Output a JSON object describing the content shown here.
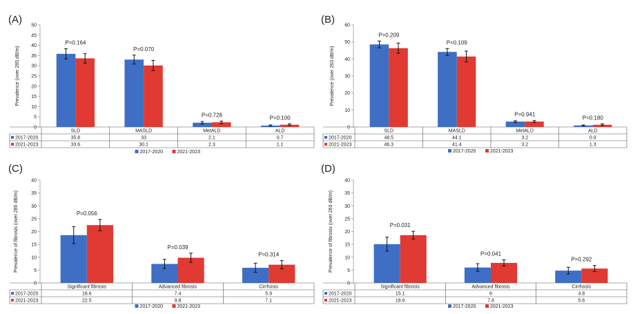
{
  "colors": {
    "s2017": "#3E6FC4",
    "s2021": "#E03A33",
    "axis": "#555555",
    "text": "#222222"
  },
  "legend": {
    "s2017": "2017-2020",
    "s2021": "2021-2023"
  },
  "chart_data": [
    {
      "type": "bar",
      "panel_label": "(A)",
      "ylabel": "Prevalence (over 285 dB/m)",
      "ylim": [
        0,
        50
      ],
      "yticks": [
        "0",
        "5",
        "10",
        "15",
        "20",
        "25",
        "30",
        "35",
        "40",
        "45",
        "50"
      ],
      "categories": [
        "SLD",
        "MASLD",
        "MetALD",
        "ALD"
      ],
      "series": [
        {
          "name": "2017-2020",
          "values": [
            35.8,
            33,
            2.1,
            0.7
          ],
          "errors": [
            2.5,
            2.2,
            0.6,
            0.3
          ],
          "table": [
            "35.8",
            "33",
            "2.1",
            "0.7"
          ]
        },
        {
          "name": "2021-2023",
          "values": [
            33.6,
            30.1,
            2.3,
            1.1
          ],
          "errors": [
            2.3,
            2.5,
            0.6,
            0.4
          ],
          "table": [
            "33.6",
            "30.1",
            "2.3",
            "1.1"
          ]
        }
      ],
      "pvalues": [
        "P=0.164",
        "P=0.070",
        "P=0.728",
        "P=0.100"
      ],
      "grid": false,
      "legend_position": "bottom-center"
    },
    {
      "type": "bar",
      "panel_label": "(B)",
      "ylabel": "Prevalence (over 263 dB/m)",
      "ylim": [
        0,
        60
      ],
      "yticks": [
        "0",
        "10",
        "20",
        "30",
        "40",
        "50",
        "60"
      ],
      "categories": [
        "SLD",
        "MASLD",
        "MetALD",
        "ALD"
      ],
      "series": [
        {
          "name": "2017-2020",
          "values": [
            48.5,
            44.1,
            3.2,
            0.9
          ],
          "errors": [
            2.0,
            2.0,
            0.5,
            0.3
          ],
          "table": [
            "48.5",
            "44.1",
            "3.2",
            "0.9"
          ]
        },
        {
          "name": "2021-2023",
          "values": [
            46.3,
            41.4,
            3.2,
            1.3
          ],
          "errors": [
            3.0,
            3.2,
            0.6,
            0.5
          ],
          "table": [
            "46.3",
            "41.4",
            "3.2",
            "1.3"
          ]
        }
      ],
      "pvalues": [
        "P=0.209",
        "P=0.109",
        "P=0.941",
        "P=0.180"
      ],
      "grid": false,
      "legend_position": "bottom-center"
    },
    {
      "type": "bar",
      "panel_label": "(C)",
      "ylabel": "Prevalence of fibrosis (over 285 dB/m)",
      "ylim": [
        0,
        40
      ],
      "yticks": [
        "0",
        "5",
        "10",
        "15",
        "20",
        "25",
        "30",
        "35",
        "40"
      ],
      "categories": [
        "Significant fibrosis",
        "Advanced fibrosis",
        "Cirrhosis"
      ],
      "series": [
        {
          "name": "2017-2020",
          "values": [
            18.6,
            7.4,
            5.9
          ],
          "errors": [
            3.3,
            1.8,
            1.8
          ],
          "table": [
            "18.6",
            "7.4",
            "5.9"
          ]
        },
        {
          "name": "2021-2023",
          "values": [
            22.5,
            9.8,
            7.1
          ],
          "errors": [
            2.2,
            1.8,
            1.6
          ],
          "table": [
            "22.5",
            "9.8",
            "7.1"
          ]
        }
      ],
      "pvalues": [
        "P=0.056",
        "P=0.039",
        "P=0.314"
      ],
      "grid": false,
      "legend_position": "bottom-center"
    },
    {
      "type": "bar",
      "panel_label": "(D)",
      "ylabel": "Prevalence of fibrosis (over 263 dB/m)",
      "ylim": [
        0,
        40
      ],
      "yticks": [
        "0",
        "5",
        "10",
        "15",
        "20",
        "25",
        "30",
        "35",
        "40"
      ],
      "categories": [
        "Significant fibrosis",
        "Advanced fibrosis",
        "Cirrhosis"
      ],
      "series": [
        {
          "name": "2017-2020",
          "values": [
            15.1,
            6,
            4.8
          ],
          "errors": [
            2.7,
            1.5,
            1.3
          ],
          "table": [
            "15.1",
            "6",
            "4.8"
          ]
        },
        {
          "name": "2021-2023",
          "values": [
            18.6,
            7.8,
            5.6
          ],
          "errors": [
            1.5,
            1.2,
            1.2
          ],
          "table": [
            "18.6",
            "7.8",
            "5.6"
          ]
        }
      ],
      "pvalues": [
        "P=0.031",
        "P=0.041",
        "P=0.292"
      ],
      "grid": false,
      "legend_position": "bottom-center"
    }
  ]
}
